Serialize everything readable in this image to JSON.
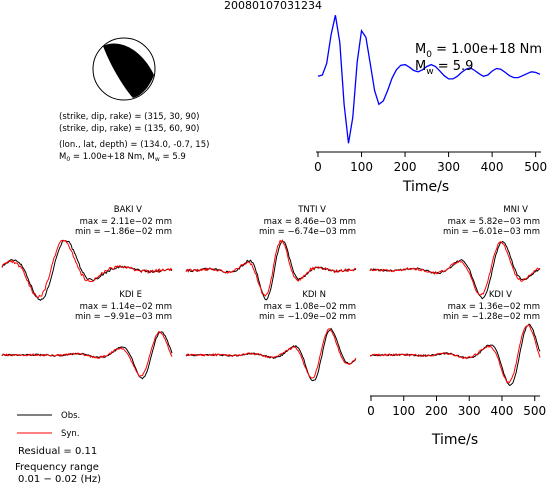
{
  "page_title": "20080107031234",
  "mechanism": {
    "lines": [
      "(strike, dip, rake) = (315, 30, 90)",
      "(strike, dip, rake) = (135, 60, 90)",
      "(lon., lat, depth) = (134.0, -0.7, 15)"
    ],
    "m0_label": "M",
    "m0_sub": "0",
    "m0_value": " = 1.00e+18 Nm, M",
    "mw_sub": "w",
    "mw_value": " = 5.9",
    "colors": {
      "fill": "#000000",
      "edge": "#000000"
    }
  },
  "stf": {
    "m0_label": "M",
    "m0_sub": "0",
    "m0_value": " = 1.00e+18 Nm",
    "mw_label": "M",
    "mw_sub": "w",
    "mw_value": " = 5.9",
    "color": "#0000ff"
  },
  "axis": {
    "xlabel": "Time/s",
    "ticks": [
      "0",
      "100",
      "200",
      "300",
      "400",
      "500"
    ],
    "range": [
      0,
      510
    ]
  },
  "legend": {
    "obs_label": "Obs.",
    "syn_label": "Syn.",
    "obs_color": "#000000",
    "syn_color": "#ff0000"
  },
  "residual_text": "Residual = 0.11",
  "freq_label": "Frequency range",
  "freq_value": "0.01 − 0.02 (Hz)",
  "stations": [
    {
      "name": "BAKI V",
      "max": "max = 2.11e−02 mm",
      "min": "min = −1.86e−02 mm"
    },
    {
      "name": "TNTI V",
      "max": "max = 8.46e−03 mm",
      "min": "min = −6.74e−03 mm"
    },
    {
      "name": "MNI V",
      "max": "max = 5.82e−03 mm",
      "min": "min = −6.01e−03 mm"
    },
    {
      "name": "KDI E",
      "max": "max = 1.14e−02 mm",
      "min": "min = −9.91e−03 mm"
    },
    {
      "name": "KDI N",
      "max": "max = 1.08e−02 mm",
      "min": "min = −1.09e−02 mm"
    },
    {
      "name": "KDI V",
      "max": "max = 1.36e−02 mm",
      "min": "min = −1.28e−02 mm"
    }
  ],
  "chart_data": [
    {
      "type": "line",
      "title": "",
      "xlabel": "Time/s",
      "ylabel": "",
      "xlim": [
        0,
        510
      ],
      "ylim": [
        -1.1,
        1.1
      ],
      "grid": false,
      "series": [
        {
          "color": "#0000ff",
          "x": [
            0,
            10,
            20,
            30,
            40,
            50,
            60,
            70,
            80,
            90,
            100,
            110,
            120,
            130,
            140,
            150,
            160,
            170,
            180,
            190,
            200,
            210,
            220,
            230,
            240,
            250,
            260,
            270,
            280,
            290,
            300,
            310,
            320,
            330,
            340,
            350,
            360,
            370,
            380,
            390,
            400,
            410,
            420,
            430,
            440,
            450,
            460,
            470,
            480,
            490,
            500,
            510
          ],
          "y": [
            -0.02,
            0.0,
            0.18,
            0.62,
            0.92,
            0.5,
            -0.45,
            -1.05,
            -0.65,
            0.2,
            0.68,
            0.58,
            0.18,
            -0.24,
            -0.45,
            -0.4,
            -0.24,
            -0.05,
            0.08,
            0.15,
            0.16,
            0.12,
            0.07,
            0.05,
            0.08,
            0.13,
            0.16,
            0.13,
            0.06,
            -0.01,
            -0.06,
            -0.06,
            -0.02,
            0.04,
            0.09,
            0.11,
            0.07,
            0.02,
            -0.02,
            0.0,
            0.06,
            0.1,
            0.09,
            0.04,
            -0.01,
            -0.04,
            -0.04,
            -0.01,
            0.02,
            0.05,
            0.04,
            0.01
          ]
        }
      ]
    }
  ]
}
